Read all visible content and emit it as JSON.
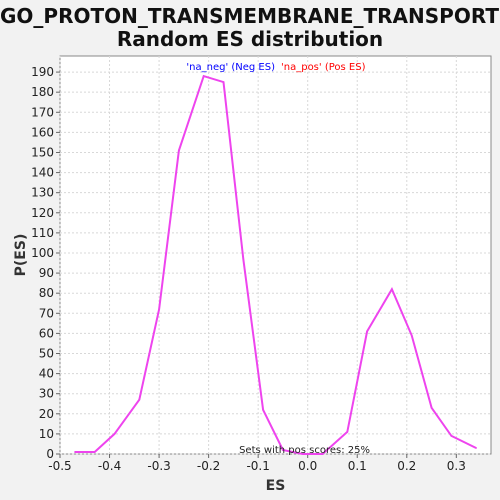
{
  "title": {
    "line1": "GO_PROTON_TRANSMEMBRANE_TRANSPORT:",
    "line2": "Random ES distribution"
  },
  "legend": {
    "neg_label": "'na_neg' (Neg ES)",
    "pos_label": "'na_pos' (Pos ES)",
    "neg_color": "#0000ff",
    "pos_color": "#ff0000"
  },
  "annotation": "Sets with pos scores: 25%",
  "chart_data": {
    "type": "line",
    "xlabel": "ES",
    "ylabel": "P(ES)",
    "xlim": [
      -0.5,
      0.37
    ],
    "ylim": [
      0,
      198
    ],
    "xticks": [
      -0.5,
      -0.4,
      -0.3,
      -0.2,
      -0.1,
      0.0,
      0.1,
      0.2,
      0.3
    ],
    "xtick_labels": [
      "-0.5",
      "-0.4",
      "-0.3",
      "-0.2",
      "-0.1",
      "0.0",
      "0.1",
      "0.2",
      "0.3"
    ],
    "yticks": [
      0,
      10,
      20,
      30,
      40,
      50,
      60,
      70,
      80,
      90,
      100,
      110,
      120,
      130,
      140,
      150,
      160,
      170,
      180,
      190
    ],
    "grid": true,
    "legend_position": "top-center",
    "series": [
      {
        "color": "#ee44ee",
        "x": [
          -0.47,
          -0.43,
          -0.39,
          -0.34,
          -0.3,
          -0.26,
          -0.21,
          -0.17,
          -0.13,
          -0.09,
          -0.05,
          -0.01,
          0.03,
          0.08,
          0.12,
          0.17,
          0.21,
          0.25,
          0.29,
          0.34
        ],
        "y": [
          1,
          1,
          10,
          27,
          72,
          151,
          188,
          185,
          97,
          22,
          2,
          0,
          0,
          11,
          61,
          82,
          59,
          23,
          9,
          3
        ]
      }
    ]
  }
}
